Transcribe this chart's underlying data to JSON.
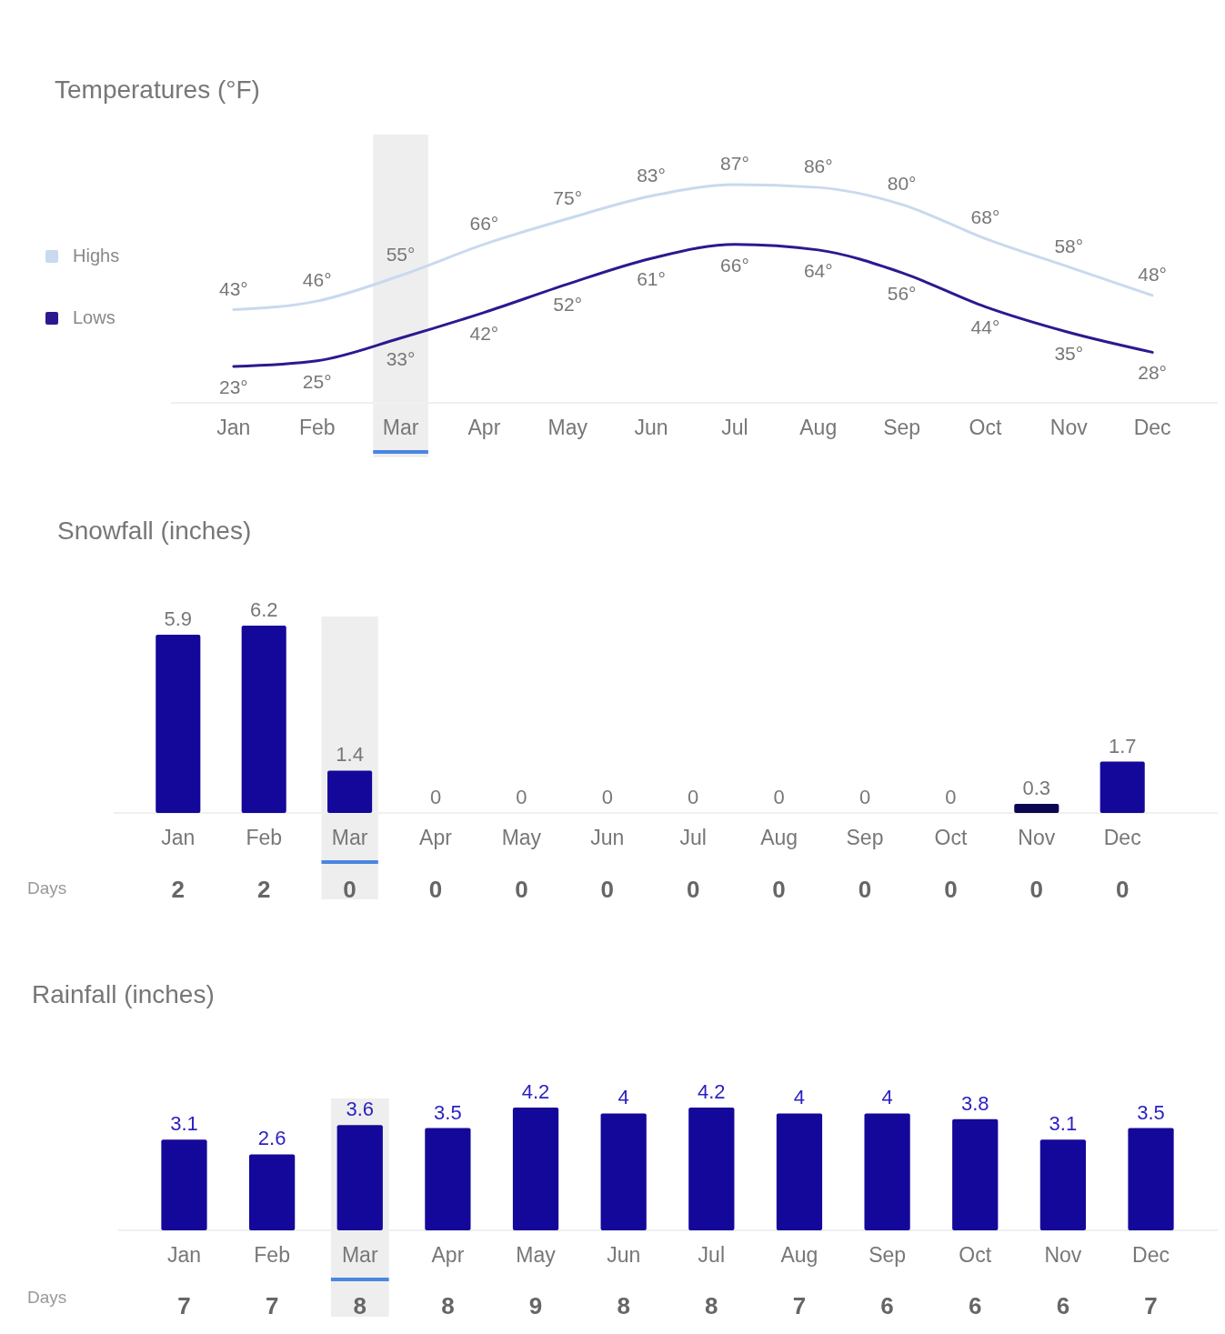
{
  "chart_data": [
    {
      "type": "line",
      "title": "Temperatures (°F)",
      "categories": [
        "Jan",
        "Feb",
        "Mar",
        "Apr",
        "May",
        "Jun",
        "Jul",
        "Aug",
        "Sep",
        "Oct",
        "Nov",
        "Dec"
      ],
      "tick_labels": "x",
      "legend": "left",
      "bands": [
        {
          "axis": "x",
          "from": "Mar",
          "to": "Mar",
          "color": "#eeeeee"
        }
      ],
      "series": [
        {
          "name": "Highs",
          "color": "#c9d9ee",
          "values": [
            43,
            46,
            55,
            66,
            75,
            83,
            87,
            86,
            80,
            68,
            58,
            48
          ],
          "value_labels": [
            "43°",
            "46°",
            "55°",
            "66°",
            "75°",
            "83°",
            "87°",
            "86°",
            "80°",
            "68°",
            "58°",
            "48°"
          ]
        },
        {
          "name": "Lows",
          "color": "#2b1990",
          "values": [
            23,
            25,
            33,
            42,
            52,
            61,
            66,
            64,
            56,
            44,
            35,
            28
          ],
          "value_labels": [
            "23°",
            "25°",
            "33°",
            "42°",
            "52°",
            "61°",
            "66°",
            "64°",
            "56°",
            "44°",
            "35°",
            "28°"
          ]
        }
      ]
    },
    {
      "type": "bar",
      "title": "Snowfall (inches)",
      "categories": [
        "Jan",
        "Feb",
        "Mar",
        "Apr",
        "May",
        "Jun",
        "Jul",
        "Aug",
        "Sep",
        "Oct",
        "Nov",
        "Dec"
      ],
      "tick_labels": "x",
      "data_labels": true,
      "bands": [
        {
          "axis": "x",
          "from": "Mar",
          "to": "Mar",
          "color": "#eeeeee"
        }
      ],
      "values": [
        5.9,
        6.2,
        1.4,
        0,
        0,
        0,
        0,
        0,
        0,
        0,
        0.3,
        1.7
      ],
      "colors": [
        "#14089a",
        "#14089a",
        "#14089a",
        "#14089a",
        "#14089a",
        "#14089a",
        "#14089a",
        "#14089a",
        "#14089a",
        "#14089a",
        "#0c0552",
        "#14089a"
      ]
    },
    {
      "type": "other",
      "title": "Days",
      "categories": [
        null,
        null,
        null,
        null,
        null,
        null,
        null,
        null,
        null,
        null,
        null,
        null
      ],
      "values": [
        2,
        2,
        0,
        0,
        0,
        0,
        0,
        0,
        0,
        0,
        0,
        0
      ],
      "data_labels": true
    },
    {
      "type": "bar",
      "title": "Rainfall (inches)",
      "categories": [
        "Jan",
        "Feb",
        "Mar",
        "Apr",
        "May",
        "Jun",
        "Jul",
        "Aug",
        "Sep",
        "Oct",
        "Nov",
        "Dec"
      ],
      "tick_labels": "x",
      "data_labels": true,
      "bands": [
        {
          "axis": "x",
          "from": "Mar",
          "to": "Mar",
          "color": "#eeeeee"
        }
      ],
      "values": [
        3.1,
        2.6,
        3.6,
        3.5,
        4.2,
        4,
        4.2,
        4,
        4,
        3.8,
        3.1,
        3.5
      ],
      "color": "#14089a"
    },
    {
      "type": "other",
      "title": "Days",
      "categories": [
        null,
        null,
        null,
        null,
        null,
        null,
        null,
        null,
        null,
        null,
        null,
        null
      ],
      "values": [
        7,
        7,
        8,
        8,
        9,
        8,
        8,
        7,
        6,
        6,
        6,
        7
      ],
      "data_labels": true
    }
  ]
}
